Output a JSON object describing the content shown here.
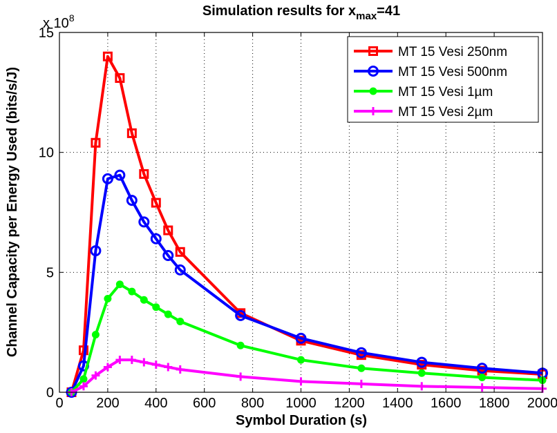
{
  "chart_data": {
    "type": "line",
    "title": {
      "prefix": "Simulation results for x",
      "subscript": "max",
      "suffix": "=41"
    },
    "xlabel": "Symbol Duration (s)",
    "ylabel": "Channel Capacity per Energy Used (bits/s/J)",
    "y_exponent": {
      "base": "x 10",
      "power": "8"
    },
    "xlim": [
      0,
      2000
    ],
    "ylim": [
      0,
      15
    ],
    "x_ticks": [
      0,
      200,
      400,
      600,
      800,
      1000,
      1200,
      1400,
      1600,
      1800,
      2000
    ],
    "y_ticks": [
      0,
      5,
      10,
      15
    ],
    "grid": true,
    "legend_position": "top-right",
    "series": [
      {
        "name": "MT 15 Vesi 250nm",
        "color": "#ff0000",
        "marker": "square",
        "x": [
          50,
          100,
          150,
          200,
          250,
          300,
          350,
          400,
          450,
          500,
          750,
          1000,
          1250,
          1500,
          1750,
          2000
        ],
        "y": [
          0,
          1.75,
          10.4,
          14.0,
          13.1,
          10.8,
          9.1,
          7.9,
          6.75,
          5.85,
          3.3,
          2.15,
          1.55,
          1.15,
          0.9,
          0.75
        ]
      },
      {
        "name": "MT 15 Vesi 500nm",
        "color": "#0000ff",
        "marker": "circle",
        "x": [
          50,
          100,
          150,
          200,
          250,
          300,
          350,
          400,
          450,
          500,
          750,
          1000,
          1250,
          1500,
          1750,
          2000
        ],
        "y": [
          0,
          1.1,
          5.9,
          8.9,
          9.05,
          8.0,
          7.1,
          6.4,
          5.7,
          5.1,
          3.2,
          2.25,
          1.65,
          1.25,
          1.0,
          0.8
        ]
      },
      {
        "name": "MT 15 Vesi 1µm",
        "color": "#00ff00",
        "marker": "dot",
        "x": [
          50,
          100,
          150,
          200,
          250,
          300,
          350,
          400,
          450,
          500,
          750,
          1000,
          1250,
          1500,
          1750,
          2000
        ],
        "y": [
          0,
          0.55,
          2.4,
          3.9,
          4.5,
          4.2,
          3.85,
          3.55,
          3.25,
          2.95,
          1.95,
          1.35,
          1.0,
          0.8,
          0.62,
          0.5
        ]
      },
      {
        "name": "MT 15 Vesi 2µm",
        "color": "#ff00ff",
        "marker": "plus",
        "x": [
          50,
          100,
          150,
          200,
          250,
          300,
          350,
          400,
          450,
          500,
          750,
          1000,
          1250,
          1500,
          1750,
          2000
        ],
        "y": [
          0,
          0.25,
          0.7,
          1.05,
          1.35,
          1.35,
          1.25,
          1.15,
          1.05,
          0.95,
          0.65,
          0.45,
          0.35,
          0.25,
          0.2,
          0.15
        ]
      }
    ]
  }
}
